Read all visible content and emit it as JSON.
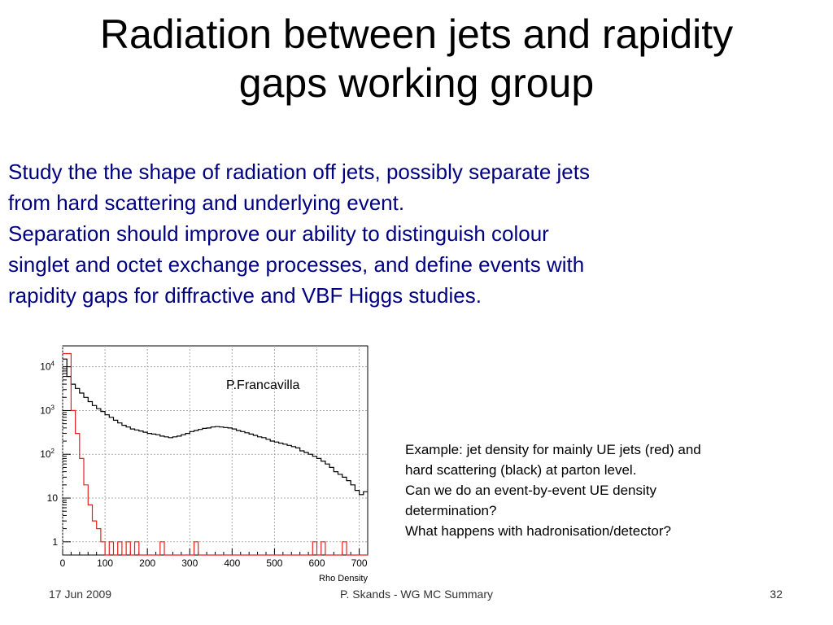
{
  "slide": {
    "title_line1": "Radiation between jets and rapidity",
    "title_line2": "gaps working group",
    "paragraphs": [
      "Study the the shape of radiation off jets, possibly separate jets",
      "from hard scattering and underlying event.",
      "Separation should improve our ability to distinguish colour",
      "singlet and octet exchange processes,  and define events with",
      "rapidity gaps for diffractive and VBF Higgs studies."
    ],
    "caption_lines": [
      "Example: jet density for mainly UE jets (red) and",
      "hard scattering (black) at parton level.",
      "Can we do an event-by-event UE density",
      "determination?",
      "What happens with hadronisation/detector?"
    ],
    "footer": {
      "date": "17 Jun 2009",
      "center": "P. Skands - WG MC Summary",
      "page": "32"
    }
  },
  "chart_data": {
    "type": "line",
    "step": true,
    "annotation": "P.Francavilla",
    "xlabel": "Rho Density",
    "ylabel": "",
    "xlim": [
      0,
      720
    ],
    "ylim": [
      0.5,
      30000
    ],
    "y_scale": "log",
    "grid": true,
    "x_ticks": [
      "0",
      "100",
      "200",
      "300",
      "400",
      "500",
      "600",
      "700"
    ],
    "y_ticks": [
      {
        "base": "10",
        "exp": "4",
        "value": 10000
      },
      {
        "base": "10",
        "exp": "3",
        "value": 1000
      },
      {
        "base": "10",
        "exp": "2",
        "value": 100
      },
      {
        "base": "10",
        "exp": "",
        "value": 10
      },
      {
        "base": "1",
        "exp": "",
        "value": 1
      }
    ],
    "series": [
      {
        "color": "#000000",
        "points": [
          [
            0,
            15000
          ],
          [
            10,
            6000
          ],
          [
            20,
            4000
          ],
          [
            30,
            3200
          ],
          [
            40,
            2500
          ],
          [
            50,
            2000
          ],
          [
            60,
            1600
          ],
          [
            70,
            1300
          ],
          [
            80,
            1100
          ],
          [
            90,
            950
          ],
          [
            100,
            800
          ],
          [
            110,
            700
          ],
          [
            120,
            600
          ],
          [
            130,
            520
          ],
          [
            140,
            460
          ],
          [
            150,
            420
          ],
          [
            160,
            380
          ],
          [
            170,
            360
          ],
          [
            180,
            340
          ],
          [
            190,
            320
          ],
          [
            200,
            300
          ],
          [
            210,
            290
          ],
          [
            220,
            280
          ],
          [
            230,
            260
          ],
          [
            240,
            250
          ],
          [
            250,
            240
          ],
          [
            260,
            250
          ],
          [
            270,
            260
          ],
          [
            280,
            280
          ],
          [
            290,
            300
          ],
          [
            300,
            330
          ],
          [
            310,
            350
          ],
          [
            320,
            370
          ],
          [
            330,
            390
          ],
          [
            340,
            400
          ],
          [
            350,
            420
          ],
          [
            360,
            430
          ],
          [
            370,
            420
          ],
          [
            380,
            410
          ],
          [
            390,
            400
          ],
          [
            400,
            380
          ],
          [
            410,
            350
          ],
          [
            420,
            330
          ],
          [
            430,
            310
          ],
          [
            440,
            290
          ],
          [
            450,
            270
          ],
          [
            460,
            250
          ],
          [
            470,
            240
          ],
          [
            480,
            220
          ],
          [
            490,
            200
          ],
          [
            500,
            190
          ],
          [
            510,
            180
          ],
          [
            520,
            170
          ],
          [
            530,
            160
          ],
          [
            540,
            150
          ],
          [
            550,
            140
          ],
          [
            560,
            120
          ],
          [
            570,
            110
          ],
          [
            580,
            100
          ],
          [
            590,
            90
          ],
          [
            600,
            80
          ],
          [
            610,
            70
          ],
          [
            620,
            60
          ],
          [
            630,
            50
          ],
          [
            640,
            40
          ],
          [
            650,
            35
          ],
          [
            660,
            30
          ],
          [
            670,
            25
          ],
          [
            680,
            20
          ],
          [
            690,
            15
          ],
          [
            700,
            12
          ],
          [
            710,
            14
          ],
          [
            720,
            14
          ]
        ]
      },
      {
        "color": "#e8201d",
        "points": [
          [
            0,
            20000
          ],
          [
            10,
            20000
          ],
          [
            20,
            1000
          ],
          [
            30,
            300
          ],
          [
            40,
            80
          ],
          [
            50,
            20
          ],
          [
            60,
            7
          ],
          [
            70,
            3
          ],
          [
            80,
            2
          ],
          [
            90,
            1
          ],
          [
            100,
            0.5
          ],
          [
            110,
            1
          ],
          [
            120,
            0.5
          ],
          [
            130,
            1
          ],
          [
            140,
            0.5
          ],
          [
            150,
            1
          ],
          [
            160,
            0.5
          ],
          [
            170,
            1
          ],
          [
            180,
            0.5
          ],
          [
            190,
            0.5
          ],
          [
            200,
            0.5
          ],
          [
            210,
            0.5
          ],
          [
            220,
            0.5
          ],
          [
            230,
            1
          ],
          [
            240,
            0.5
          ],
          [
            250,
            0.5
          ],
          [
            260,
            0.5
          ],
          [
            270,
            0.5
          ],
          [
            280,
            0.5
          ],
          [
            290,
            0.5
          ],
          [
            300,
            0.5
          ],
          [
            310,
            1
          ],
          [
            320,
            0.5
          ],
          [
            330,
            0.5
          ],
          [
            340,
            0.5
          ],
          [
            350,
            0.5
          ],
          [
            360,
            0.5
          ],
          [
            370,
            0.5
          ],
          [
            380,
            0.5
          ],
          [
            390,
            0.5
          ],
          [
            400,
            0.5
          ],
          [
            410,
            0.5
          ],
          [
            420,
            0.5
          ],
          [
            430,
            0.5
          ],
          [
            440,
            0.5
          ],
          [
            450,
            0.5
          ],
          [
            460,
            0.5
          ],
          [
            470,
            0.5
          ],
          [
            480,
            0.5
          ],
          [
            490,
            0.5
          ],
          [
            500,
            0.5
          ],
          [
            510,
            0.5
          ],
          [
            520,
            0.5
          ],
          [
            530,
            0.5
          ],
          [
            540,
            0.5
          ],
          [
            550,
            0.5
          ],
          [
            560,
            0.5
          ],
          [
            570,
            0.5
          ],
          [
            580,
            0.5
          ],
          [
            590,
            1
          ],
          [
            600,
            0.5
          ],
          [
            610,
            1
          ],
          [
            620,
            0.5
          ],
          [
            630,
            0.5
          ],
          [
            640,
            0.5
          ],
          [
            650,
            0.5
          ],
          [
            660,
            1
          ],
          [
            670,
            0.5
          ],
          [
            680,
            0.5
          ],
          [
            690,
            0.5
          ],
          [
            700,
            0.5
          ],
          [
            710,
            0.5
          ],
          [
            720,
            0.5
          ]
        ]
      }
    ]
  }
}
